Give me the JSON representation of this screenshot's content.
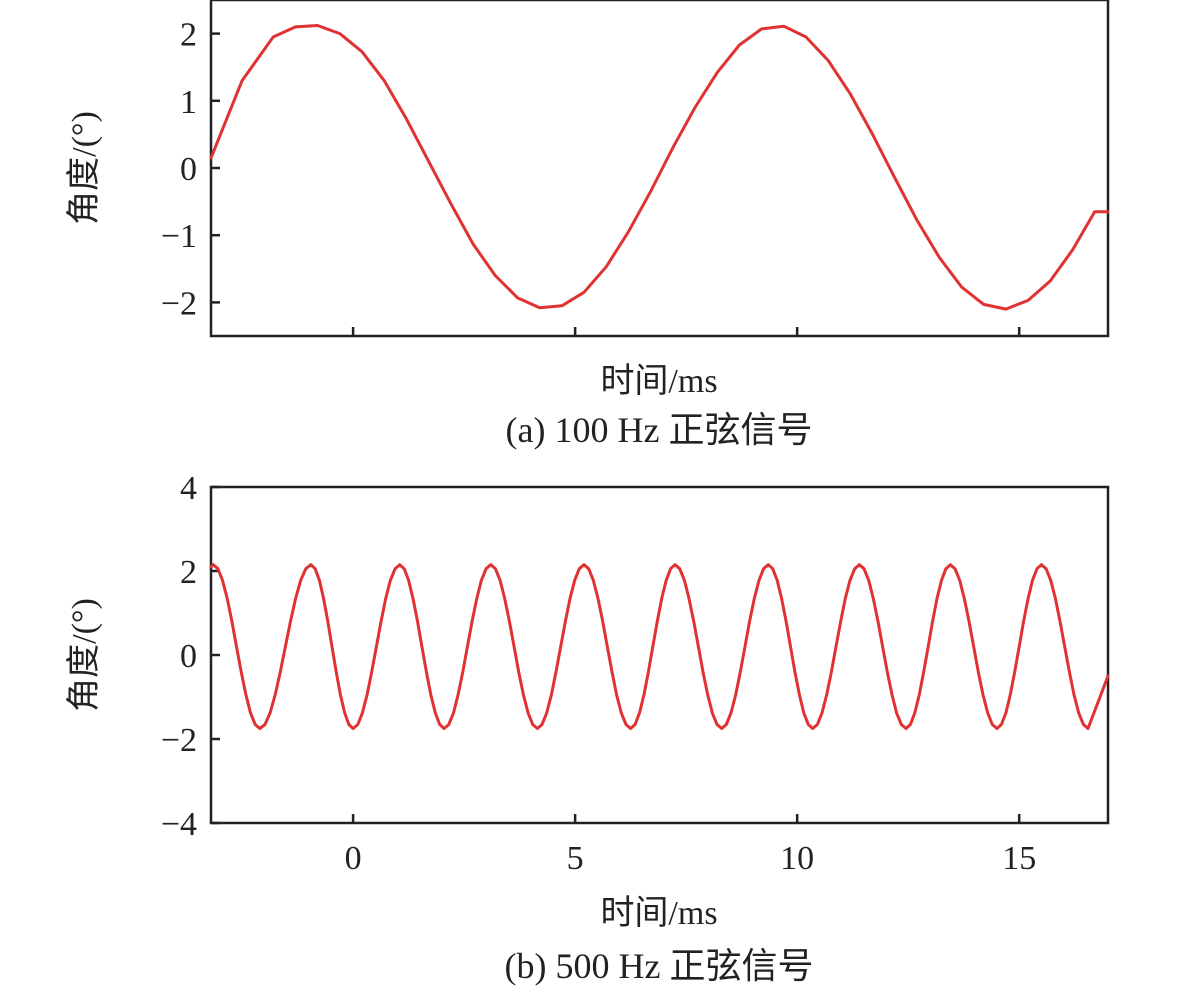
{
  "colors": {
    "series": "#e03232",
    "axis": "#222222"
  },
  "chart_data": [
    {
      "type": "line",
      "caption": "(a) 100 Hz 正弦信号",
      "xlabel": "时间/ms",
      "ylabel": "角度/(°)",
      "xlim": [
        -3.2,
        17
      ],
      "ylim": [
        -2.5,
        2.5
      ],
      "xticks": [
        0,
        5,
        10,
        15
      ],
      "xticklabels_visible": false,
      "yticks": [
        -2,
        -1,
        0,
        1,
        2
      ],
      "yticklabels": [
        "−2",
        "−1",
        "0",
        "1",
        "2"
      ],
      "grid": false,
      "series": [
        {
          "frequency_hz": 100,
          "amplitude_deg": 2.1,
          "x": [
            -3.2,
            -2.5,
            -1.8,
            -1.3,
            -0.8,
            -0.3,
            0.2,
            0.7,
            1.2,
            1.7,
            2.2,
            2.7,
            3.2,
            3.7,
            4.2,
            4.7,
            5.2,
            5.7,
            6.2,
            6.7,
            7.2,
            7.7,
            8.2,
            8.7,
            9.2,
            9.7,
            10.2,
            10.7,
            11.2,
            11.7,
            12.2,
            12.7,
            13.2,
            13.7,
            14.2,
            14.7,
            15.2,
            15.7,
            16.2,
            16.7,
            17.0
          ],
          "y": [
            0.15,
            1.3,
            1.95,
            2.1,
            2.12,
            2.0,
            1.73,
            1.3,
            0.73,
            0.1,
            -0.53,
            -1.13,
            -1.6,
            -1.93,
            -2.08,
            -2.05,
            -1.85,
            -1.47,
            -0.95,
            -0.35,
            0.3,
            0.9,
            1.42,
            1.83,
            2.07,
            2.11,
            1.95,
            1.6,
            1.1,
            0.5,
            -0.15,
            -0.78,
            -1.33,
            -1.77,
            -2.03,
            -2.1,
            -1.97,
            -1.68,
            -1.22,
            -0.65,
            -0.65
          ]
        }
      ]
    },
    {
      "type": "line",
      "caption": "(b) 500 Hz 正弦信号",
      "xlabel": "时间/ms",
      "ylabel": "角度/(°)",
      "xlim": [
        -3.2,
        17
      ],
      "ylim": [
        -4,
        4
      ],
      "xticks": [
        0,
        5,
        10,
        15
      ],
      "xticklabels": [
        "0",
        "5",
        "10",
        "15"
      ],
      "yticks": [
        -4,
        -2,
        0,
        2,
        4
      ],
      "yticklabels": [
        "−4",
        "−2",
        "0",
        "2",
        "4"
      ],
      "grid": false,
      "series": [
        {
          "frequency_hz": 500,
          "amplitude_deg": 1.95,
          "offset_deg": 0.2,
          "peak_times_ms": [
            -3.15,
            -0.95,
            1.05,
            3.1,
            5.2,
            7.25,
            9.35,
            11.4,
            13.45,
            15.5
          ],
          "trough_times_ms": [
            -2.1,
            0.0,
            2.05,
            4.15,
            6.25,
            8.3,
            10.35,
            12.45,
            14.5,
            16.55
          ],
          "peak_value_deg": 2.15,
          "trough_value_deg": -1.75,
          "end_value_deg": -0.5
        }
      ]
    }
  ]
}
